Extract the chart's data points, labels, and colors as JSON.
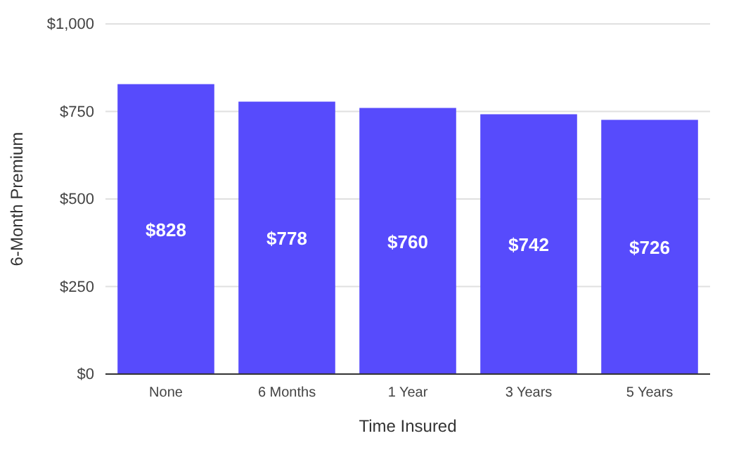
{
  "chart_data": {
    "type": "bar",
    "xlabel": "Time Insured",
    "ylabel": "6-Month Premium",
    "categories": [
      "None",
      "6 Months",
      "1 Year",
      "3 Years",
      "5 Years"
    ],
    "values": [
      828,
      778,
      760,
      742,
      726
    ],
    "value_labels": [
      "$828",
      "$778",
      "$760",
      "$742",
      "$726"
    ],
    "color": "#574bfc",
    "ylim": [
      0,
      1000
    ],
    "yticks": [
      {
        "value": 0,
        "label": "$0"
      },
      {
        "value": 250,
        "label": "$250"
      },
      {
        "value": 500,
        "label": "$500"
      },
      {
        "value": 750,
        "label": "$750"
      },
      {
        "value": 1000,
        "label": "$1,000"
      }
    ],
    "grid": "y"
  }
}
